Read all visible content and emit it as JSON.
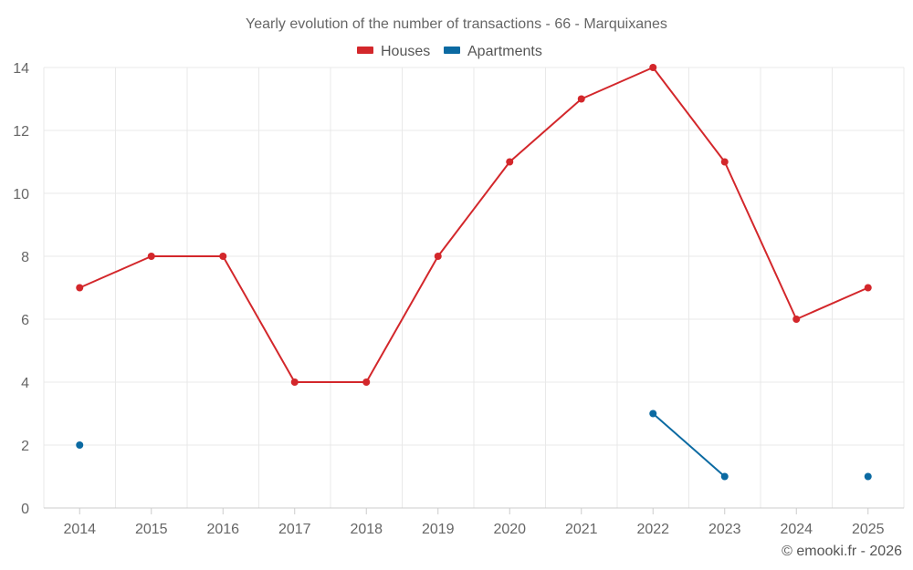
{
  "chart_data": {
    "type": "line",
    "title": "Yearly evolution of the number of transactions - 66 - Marquixanes",
    "categories": [
      "2014",
      "2015",
      "2016",
      "2017",
      "2018",
      "2019",
      "2020",
      "2021",
      "2022",
      "2023",
      "2024",
      "2025"
    ],
    "series": [
      {
        "name": "Houses",
        "color": "#d3272b",
        "values": [
          7,
          8,
          8,
          4,
          4,
          8,
          11,
          13,
          14,
          11,
          6,
          7
        ]
      },
      {
        "name": "Apartments",
        "color": "#0b6aa2",
        "values": [
          2,
          null,
          null,
          null,
          null,
          null,
          null,
          null,
          3,
          1,
          null,
          1
        ]
      }
    ],
    "ylim": [
      0,
      14
    ],
    "yticks": [
      0,
      2,
      4,
      6,
      8,
      10,
      12,
      14
    ],
    "xlabel": "",
    "ylabel": "",
    "grid": true,
    "legend_position": "top-center"
  },
  "credit": "© emooki.fr - 2026"
}
